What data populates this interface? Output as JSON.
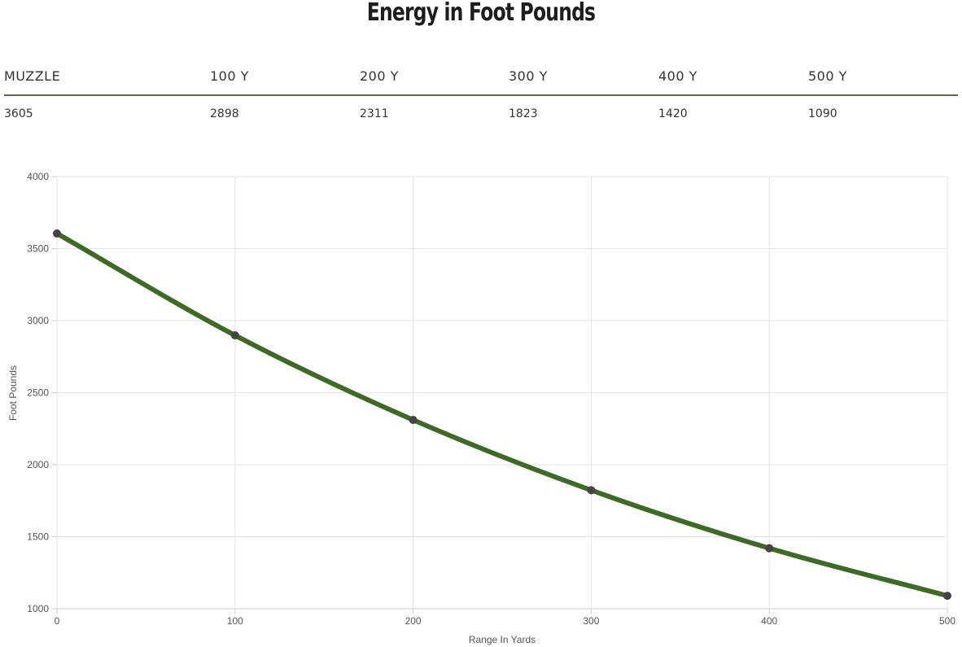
{
  "title": "Energy in Foot Pounds",
  "table": {
    "headers": [
      "MUZZLE",
      "100 Y",
      "200 Y",
      "300 Y",
      "400 Y",
      "500 Y"
    ],
    "values": [
      "3605",
      "2898",
      "2311",
      "1823",
      "1420",
      "1090"
    ]
  },
  "chart_data": {
    "type": "line",
    "x": [
      0,
      100,
      200,
      300,
      400,
      500
    ],
    "series": [
      {
        "values": [
          3605,
          2898,
          2311,
          1823,
          1420,
          1090
        ],
        "color": "#3e6b24"
      }
    ],
    "xlabel": "Range In Yards",
    "ylabel": "Foot Pounds",
    "xlim": [
      0,
      500
    ],
    "ylim": [
      1000,
      4000
    ],
    "x_ticks": [
      "0",
      "100",
      "200",
      "300",
      "400",
      "500"
    ],
    "y_ticks": [
      "1000",
      "1500",
      "2000",
      "2500",
      "3000",
      "3500",
      "4000"
    ],
    "grid": true,
    "legend": "none",
    "point_color": "#444444"
  }
}
